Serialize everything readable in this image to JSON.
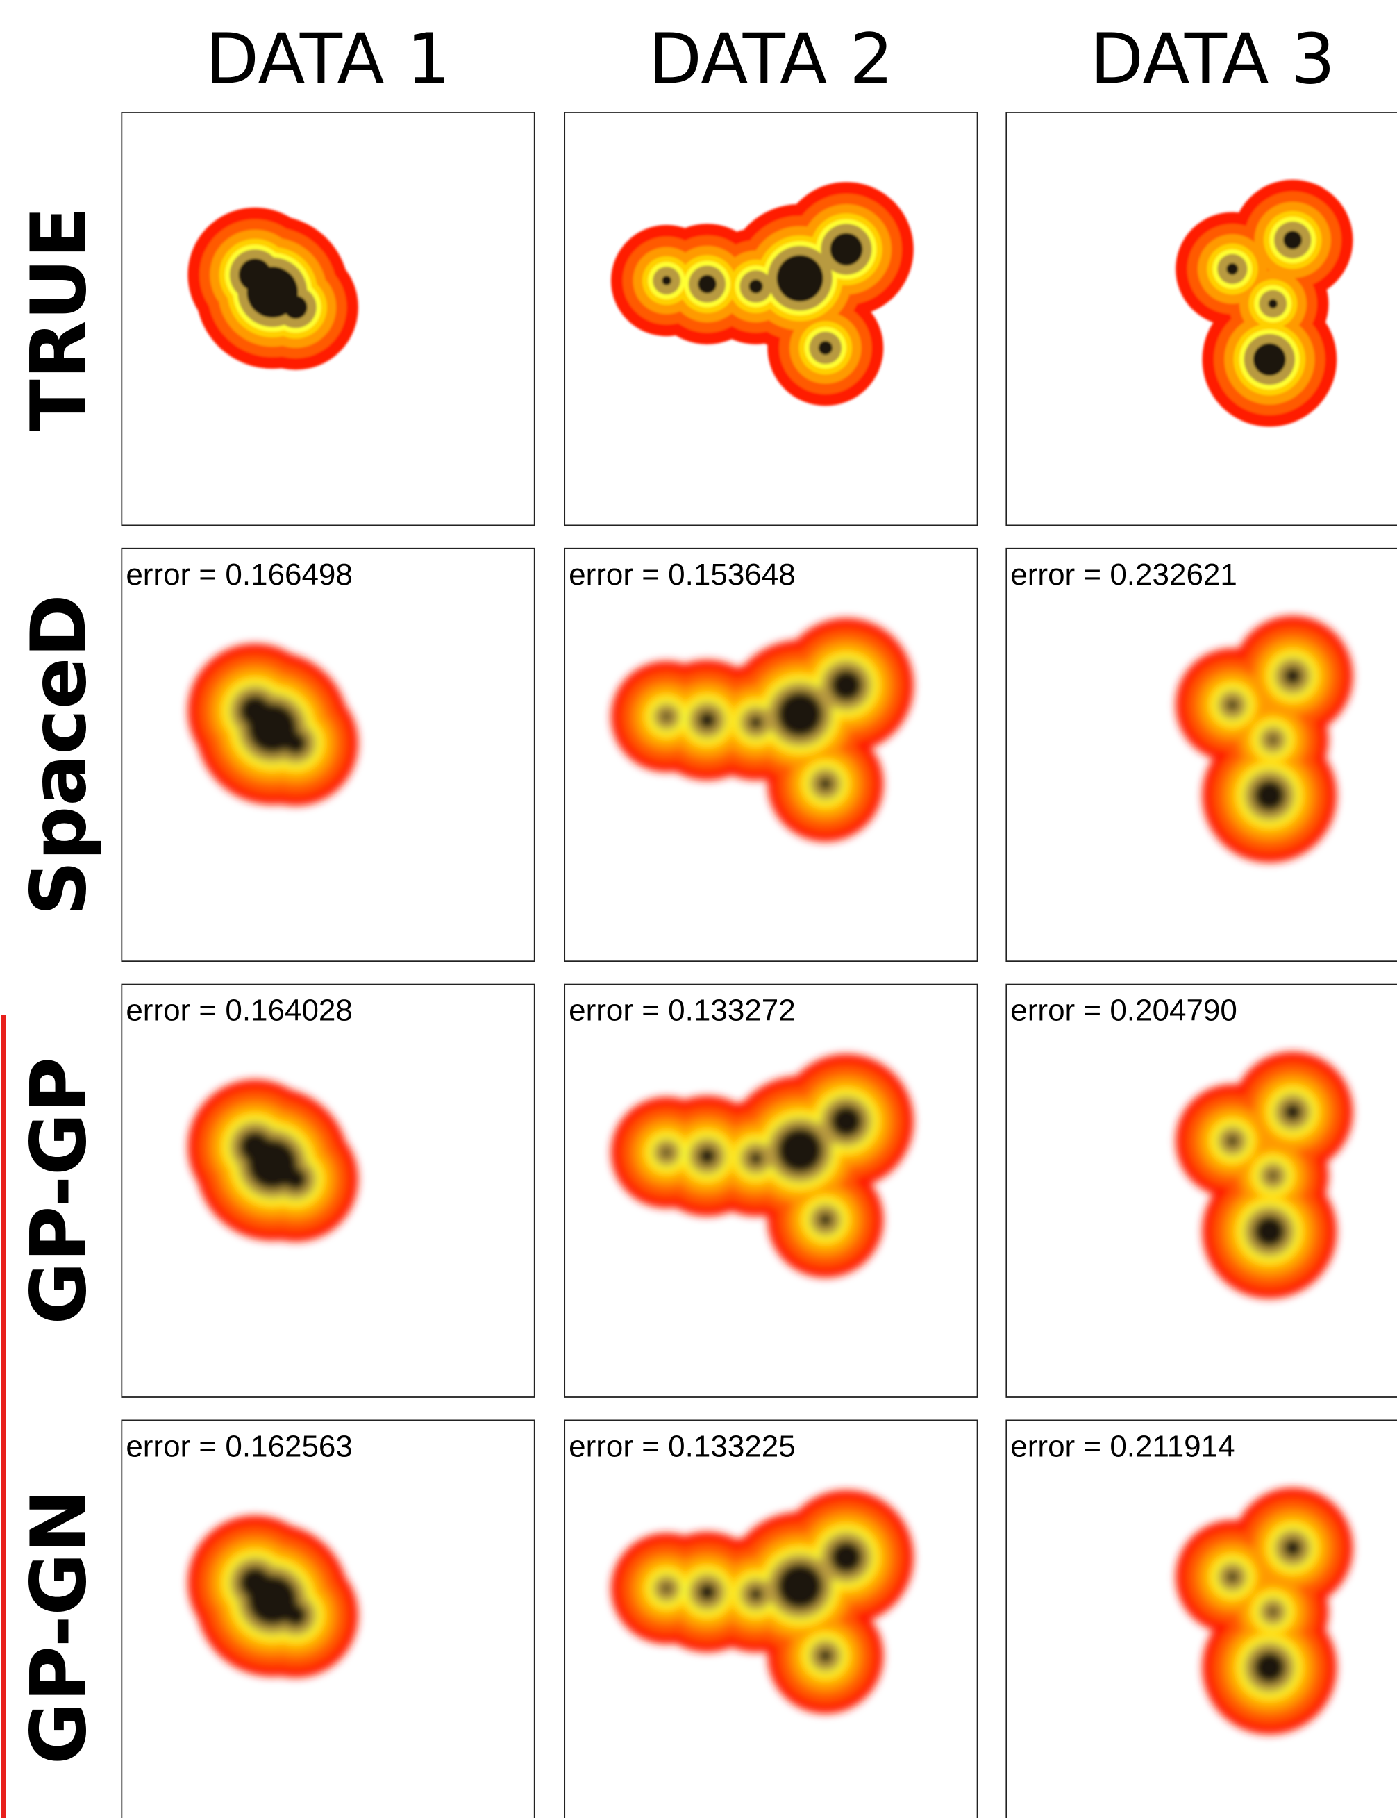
{
  "column_headers": [
    "DATA 1",
    "DATA 2",
    "DATA 3"
  ],
  "rows": [
    {
      "label": "TRUE"
    },
    {
      "label": "SpaceD",
      "errors": [
        "error = 0.166498",
        "error = 0.153648",
        "error = 0.232621"
      ]
    },
    {
      "label": "GP-GP",
      "errors": [
        "error = 0.164028",
        "error = 0.133272",
        "error = 0.204790"
      ]
    },
    {
      "label": "GP-GN",
      "errors": [
        "error = 0.162563",
        "error = 0.133225",
        "error = 0.211914"
      ]
    }
  ]
}
